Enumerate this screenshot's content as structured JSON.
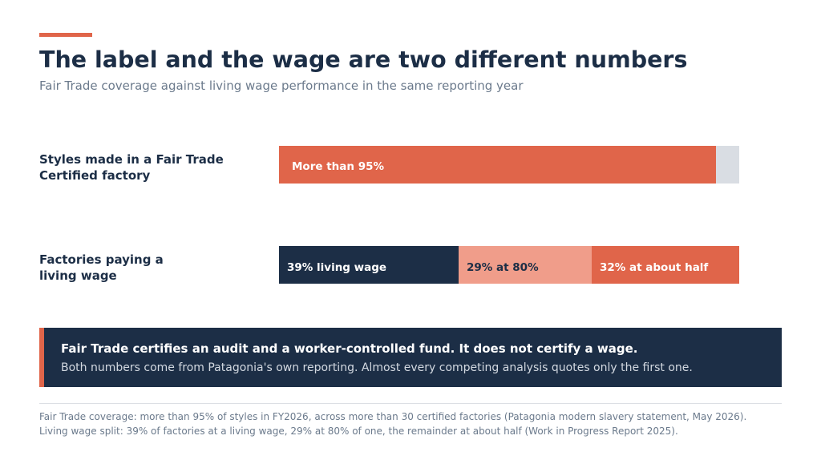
{
  "header": {
    "title": "The label and the wage are two different numbers",
    "subtitle": "Fair Trade coverage against living wage performance in the same reporting year"
  },
  "colors": {
    "accent": "#e0654a",
    "navy": "#1c2e46",
    "salmon": "#f09d8a",
    "remainder_gray": "#d9dde3"
  },
  "chart_data": {
    "type": "bar",
    "orientation": "horizontal",
    "stacked": true,
    "unit": "%",
    "rows": [
      {
        "label_lines": [
          "Styles made in a Fair Trade",
          "Certified factory"
        ],
        "segments": [
          {
            "value": 95,
            "label": "More than 95%",
            "color": "#e0654a",
            "text_color": "#ffffff"
          },
          {
            "value": 5,
            "label": "",
            "color": "#d9dde3",
            "text_color": "#1c2e46"
          }
        ]
      },
      {
        "label_lines": [
          "Factories paying a",
          "living wage"
        ],
        "segments": [
          {
            "value": 39,
            "label": "39% living wage",
            "color": "#1c2e46",
            "text_color": "#ffffff"
          },
          {
            "value": 29,
            "label": "29% at 80%",
            "color": "#f09d8a",
            "text_color": "#1c2e46"
          },
          {
            "value": 32,
            "label": "32% at about half",
            "color": "#e0654a",
            "text_color": "#ffffff"
          }
        ]
      }
    ]
  },
  "callout": {
    "headline": "Fair Trade certifies an audit and a worker-controlled fund. It does not certify a wage.",
    "body": "Both numbers come from Patagonia's own reporting. Almost every competing analysis quotes only the first one."
  },
  "sources": [
    "Fair Trade coverage: more than 95% of styles in FY2026, across more than 30 certified factories (Patagonia modern slavery statement, May 2026).",
    "Living wage split: 39% of factories at a living wage, 29% at 80% of one, the remainder at about half (Work in Progress Report 2025)."
  ]
}
